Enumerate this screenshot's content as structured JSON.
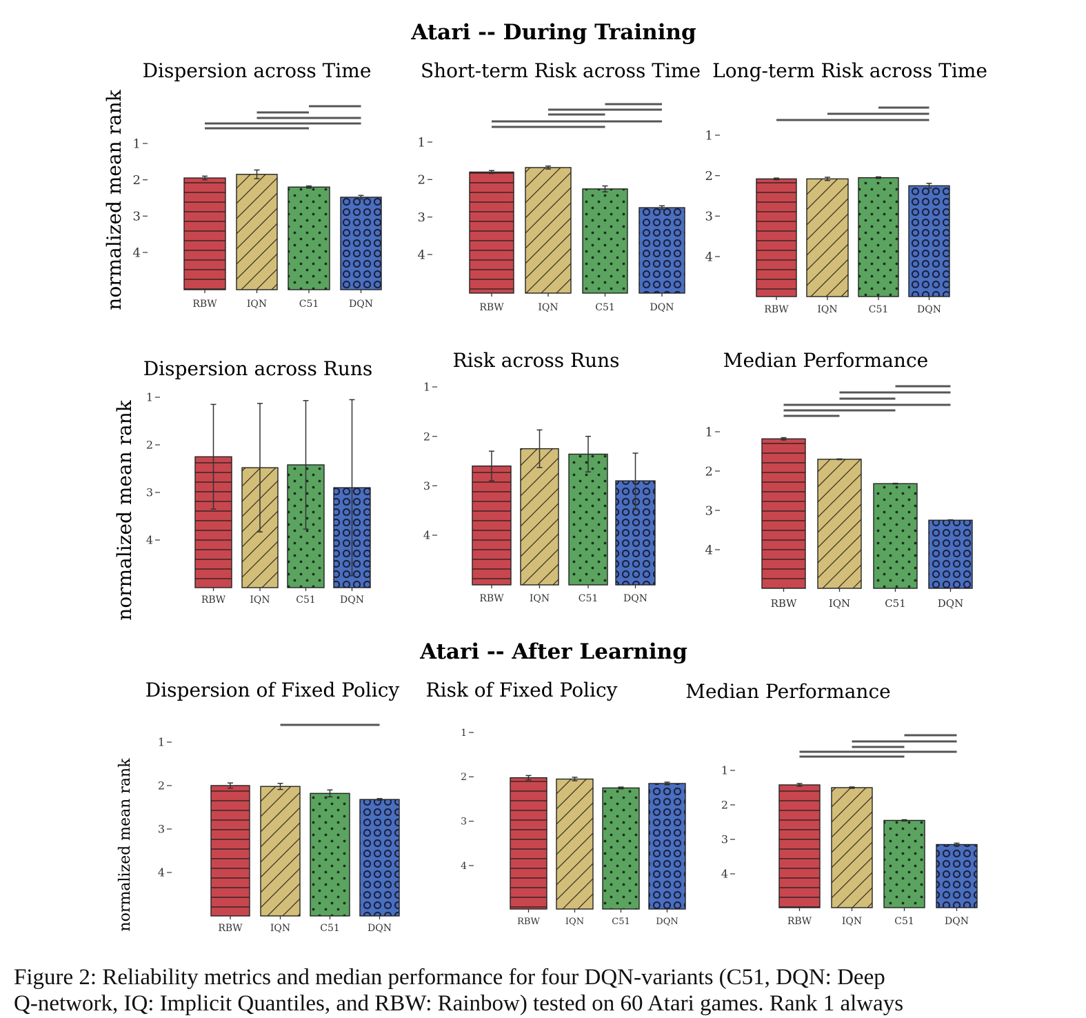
{
  "section_titles": {
    "during": "Atari -- During Training",
    "after": "Atari -- After Learning"
  },
  "ylabel": "normalized mean rank",
  "caption": {
    "line1": "Figure 2: Reliability metrics and median performance for four DQN-variants (C51, DQN: Deep",
    "line2": "Q-network, IQ: Implicit Quantiles, and RBW: Rainbow) tested on 60 Atari games. Rank 1 always"
  },
  "colors": {
    "RBW": "#c8474f",
    "IQN": "#d2be78",
    "C51": "#5aa45f",
    "DQN": "#4a6fc0"
  },
  "patterns": {
    "RBW": "horizontal-lines",
    "IQN": "diagonal-lines",
    "C51": "dots",
    "DQN": "circles"
  },
  "chart_data": [
    {
      "type": "bar",
      "title": "Dispersion across Time",
      "ylabel": "normalized mean rank",
      "yticks": [
        "1",
        "2",
        "3",
        "4"
      ],
      "y_inverted": true,
      "categories": [
        "RBW",
        "IQN",
        "C51",
        "DQN"
      ],
      "values": [
        1.95,
        1.85,
        2.2,
        2.48
      ],
      "errors": [
        0.05,
        0.12,
        0.03,
        0.05
      ],
      "significance": [
        [
          "C51",
          "DQN"
        ],
        [
          "IQN",
          "C51"
        ],
        [
          "IQN",
          "DQN"
        ],
        [
          "RBW",
          "DQN"
        ],
        [
          "RBW",
          "C51"
        ]
      ]
    },
    {
      "type": "bar",
      "title": "Short-term Risk across Time",
      "ylabel": "",
      "yticks": [
        "1",
        "2",
        "3",
        "4"
      ],
      "y_inverted": true,
      "categories": [
        "RBW",
        "IQN",
        "C51",
        "DQN"
      ],
      "values": [
        1.8,
        1.68,
        2.25,
        2.75
      ],
      "errors": [
        0.04,
        0.04,
        0.08,
        0.05
      ],
      "significance": [
        [
          "C51",
          "DQN"
        ],
        [
          "IQN",
          "DQN"
        ],
        [
          "IQN",
          "C51"
        ],
        [
          "RBW",
          "DQN"
        ],
        [
          "RBW",
          "C51"
        ]
      ]
    },
    {
      "type": "bar",
      "title": "Long-term Risk across Time",
      "ylabel": "",
      "yticks": [
        "1",
        "2",
        "3",
        "4"
      ],
      "y_inverted": true,
      "categories": [
        "RBW",
        "IQN",
        "C51",
        "DQN"
      ],
      "values": [
        2.08,
        2.08,
        2.05,
        2.25
      ],
      "errors": [
        0.02,
        0.04,
        0.02,
        0.06
      ],
      "significance": [
        [
          "C51",
          "DQN"
        ],
        [
          "IQN",
          "DQN"
        ],
        [
          "RBW",
          "DQN"
        ]
      ]
    },
    {
      "type": "bar",
      "title": "Dispersion across Runs",
      "ylabel": "normalized mean rank",
      "yticks": [
        "1",
        "2",
        "3",
        "4"
      ],
      "y_inverted": true,
      "categories": [
        "RBW",
        "IQN",
        "C51",
        "DQN"
      ],
      "values": [
        2.25,
        2.48,
        2.42,
        2.9
      ],
      "errors": [
        1.1,
        1.35,
        1.35,
        1.85
      ],
      "significance": []
    },
    {
      "type": "bar",
      "title": "Risk across Runs",
      "ylabel": "",
      "yticks": [
        "1",
        "2",
        "3",
        "4"
      ],
      "y_inverted": true,
      "categories": [
        "RBW",
        "IQN",
        "C51",
        "DQN"
      ],
      "values": [
        2.6,
        2.25,
        2.36,
        2.9
      ],
      "errors": [
        0.3,
        0.38,
        0.36,
        0.56
      ],
      "significance": []
    },
    {
      "type": "bar",
      "title": "Median Performance",
      "ylabel": "",
      "yticks": [
        "1",
        "2",
        "3",
        "4"
      ],
      "y_inverted": true,
      "categories": [
        "RBW",
        "IQN",
        "C51",
        "DQN"
      ],
      "values": [
        1.18,
        1.7,
        2.32,
        3.25
      ],
      "errors": [
        0.03,
        0.01,
        0.01,
        0.01
      ],
      "significance": [
        [
          "C51",
          "DQN"
        ],
        [
          "IQN",
          "DQN"
        ],
        [
          "IQN",
          "C51"
        ],
        [
          "RBW",
          "DQN"
        ],
        [
          "RBW",
          "C51"
        ],
        [
          "RBW",
          "IQN"
        ]
      ]
    },
    {
      "type": "bar",
      "title": "Dispersion of Fixed Policy",
      "ylabel": "normalized mean rank",
      "yticks": [
        "1",
        "2",
        "3",
        "4"
      ],
      "y_inverted": true,
      "categories": [
        "RBW",
        "IQN",
        "C51",
        "DQN"
      ],
      "values": [
        2.0,
        2.02,
        2.18,
        2.32
      ],
      "errors": [
        0.06,
        0.07,
        0.08,
        0.02
      ],
      "significance": [
        [
          "IQN",
          "DQN"
        ]
      ]
    },
    {
      "type": "bar",
      "title": "Risk of Fixed Policy",
      "ylabel": "",
      "yticks": [
        "1",
        "2",
        "3",
        "4"
      ],
      "y_inverted": true,
      "categories": [
        "RBW",
        "IQN",
        "C51",
        "DQN"
      ],
      "values": [
        2.02,
        2.05,
        2.25,
        2.15
      ],
      "errors": [
        0.05,
        0.04,
        0.02,
        0.03
      ],
      "significance": []
    },
    {
      "type": "bar",
      "title": "Median Performance",
      "ylabel": "",
      "yticks": [
        "1",
        "2",
        "3",
        "4"
      ],
      "y_inverted": true,
      "categories": [
        "RBW",
        "IQN",
        "C51",
        "DQN"
      ],
      "values": [
        1.42,
        1.5,
        2.45,
        3.15
      ],
      "errors": [
        0.04,
        0.02,
        0.02,
        0.04
      ],
      "significance": [
        [
          "C51",
          "DQN"
        ],
        [
          "IQN",
          "DQN"
        ],
        [
          "IQN",
          "C51"
        ],
        [
          "RBW",
          "DQN"
        ],
        [
          "RBW",
          "C51"
        ]
      ]
    }
  ]
}
